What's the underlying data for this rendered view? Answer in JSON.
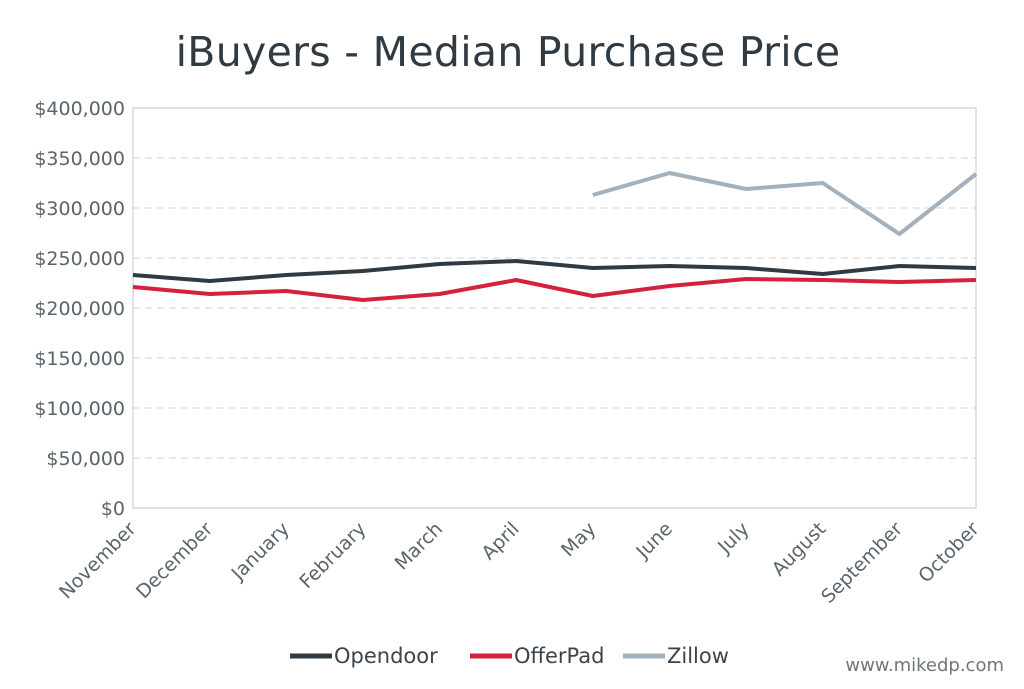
{
  "chart_data": {
    "type": "line",
    "title": "iBuyers - Median Purchase Price",
    "categories": [
      "November",
      "December",
      "January",
      "February",
      "March",
      "April",
      "May",
      "June",
      "July",
      "August",
      "September",
      "October"
    ],
    "ylim": [
      0,
      400000
    ],
    "yticks": [
      0,
      50000,
      100000,
      150000,
      200000,
      250000,
      300000,
      350000,
      400000
    ],
    "ytick_labels": [
      "$0",
      "$50,000",
      "$100,000",
      "$150,000",
      "$200,000",
      "$250,000",
      "$300,000",
      "$350,000",
      "$400,000"
    ],
    "grid": true,
    "legend_position": "bottom",
    "series": [
      {
        "name": "Opendoor",
        "color": "#2f3a42",
        "values": [
          233000,
          227000,
          233000,
          237000,
          244000,
          247000,
          240000,
          242000,
          240000,
          234000,
          242000,
          240000
        ]
      },
      {
        "name": "OfferPad",
        "color": "#d4213d",
        "values": [
          221000,
          214000,
          217000,
          208000,
          214000,
          228000,
          212000,
          222000,
          229000,
          228000,
          226000,
          228000
        ]
      },
      {
        "name": "Zillow",
        "color": "#a3b1bd",
        "values": [
          null,
          null,
          null,
          null,
          null,
          null,
          313000,
          335000,
          319000,
          325000,
          274000,
          334000
        ]
      }
    ]
  },
  "watermark": "www.mikedp.com"
}
